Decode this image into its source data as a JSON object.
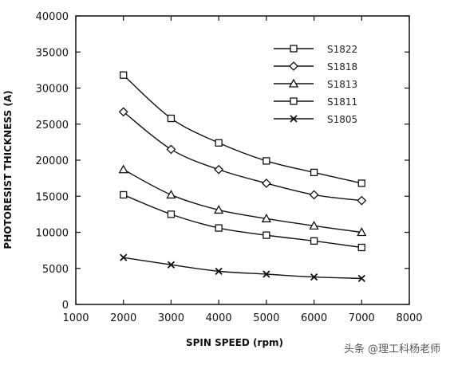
{
  "chart_data": {
    "type": "line",
    "title": "",
    "xlabel": "SPIN SPEED (rpm)",
    "ylabel": "PHOTORESIST THICKNESS (A)",
    "xlim": [
      1000,
      8000
    ],
    "ylim": [
      0,
      40000
    ],
    "x_ticks": [
      1000,
      2000,
      3000,
      4000,
      5000,
      6000,
      7000,
      8000
    ],
    "y_ticks": [
      0,
      5000,
      10000,
      15000,
      20000,
      25000,
      30000,
      35000,
      40000
    ],
    "grid": false,
    "legend_position": "top-right",
    "x": [
      2000,
      3000,
      4000,
      5000,
      6000,
      7000
    ],
    "series": [
      {
        "name": "S1822",
        "marker": "square",
        "values": [
          31800,
          25800,
          22400,
          19900,
          18300,
          16800
        ]
      },
      {
        "name": "S1818",
        "marker": "diamond",
        "values": [
          26700,
          21500,
          18700,
          16800,
          15200,
          14400
        ]
      },
      {
        "name": "S1813",
        "marker": "triangle",
        "values": [
          18700,
          15200,
          13100,
          11900,
          10900,
          10000
        ]
      },
      {
        "name": "S1811",
        "marker": "square",
        "values": [
          15200,
          12500,
          10600,
          9600,
          8800,
          7900
        ]
      },
      {
        "name": "S1805",
        "marker": "x",
        "values": [
          6500,
          5500,
          4600,
          4200,
          3800,
          3600
        ]
      }
    ]
  },
  "watermark": "头条 @理工科杨老师",
  "colors": {
    "line": "#111111",
    "background": "#ffffff",
    "watermark": "#555555"
  }
}
